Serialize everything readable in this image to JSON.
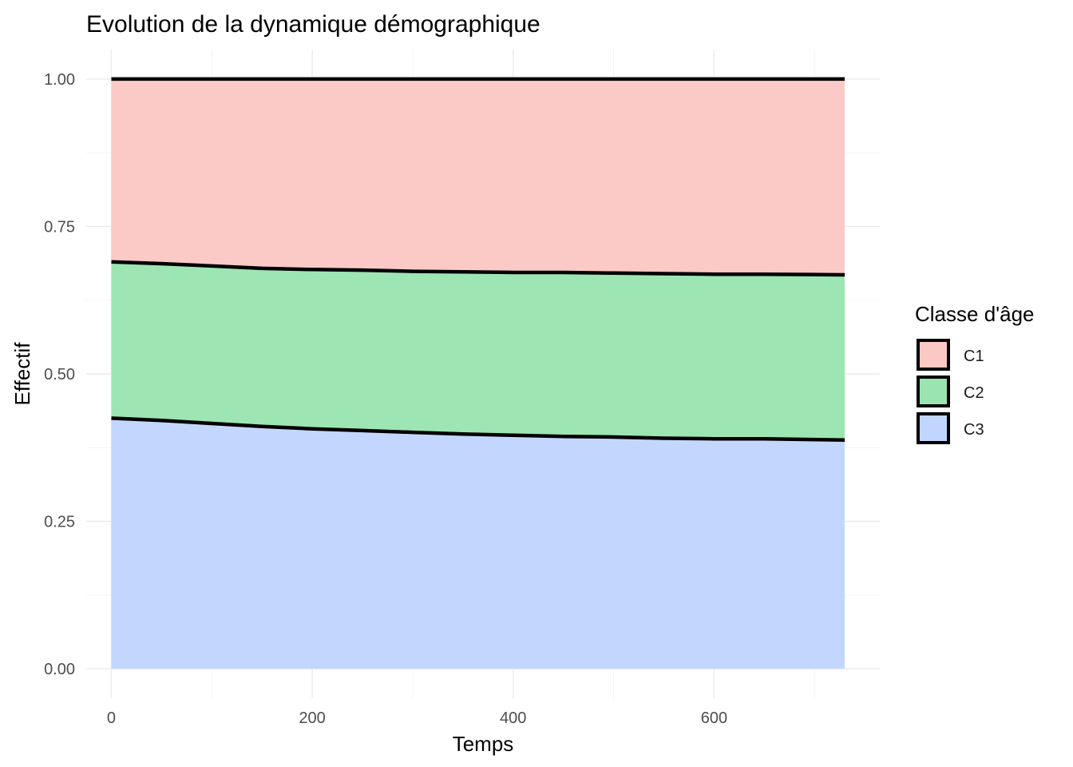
{
  "chart_data": {
    "type": "area",
    "stacked": true,
    "title": "Evolution de la dynamique démographique",
    "xlabel": "Temps",
    "ylabel": "Effectif",
    "xlim": [
      -25,
      765
    ],
    "ylim": [
      -0.05,
      1.05
    ],
    "x_ticks": [
      0,
      200,
      400,
      600
    ],
    "x_tick_labels": [
      "0",
      "200",
      "400",
      "600"
    ],
    "y_ticks": [
      0,
      0.25,
      0.5,
      0.75,
      1.0
    ],
    "y_tick_labels": [
      "0.00",
      "0.25",
      "0.50",
      "0.75",
      "1.00"
    ],
    "grid": true,
    "legend": {
      "title": "Classe d'âge",
      "position": "right",
      "entries": [
        "C1",
        "C2",
        "C3"
      ]
    },
    "x": [
      0,
      50,
      100,
      150,
      200,
      250,
      300,
      350,
      400,
      450,
      500,
      550,
      600,
      650,
      730
    ],
    "series": [
      {
        "name": "C3",
        "color": "#c1d6fe",
        "values": [
          0.425,
          0.421,
          0.416,
          0.411,
          0.407,
          0.404,
          0.401,
          0.398,
          0.396,
          0.394,
          0.393,
          0.391,
          0.39,
          0.39,
          0.388
        ]
      },
      {
        "name": "C2",
        "color": "#9ae4b0",
        "values": [
          0.265,
          0.266,
          0.267,
          0.268,
          0.27,
          0.272,
          0.273,
          0.275,
          0.276,
          0.278,
          0.278,
          0.279,
          0.279,
          0.279,
          0.28
        ]
      },
      {
        "name": "C1",
        "color": "#fbc8c4",
        "values": [
          0.31,
          0.313,
          0.317,
          0.321,
          0.323,
          0.324,
          0.326,
          0.327,
          0.328,
          0.328,
          0.329,
          0.33,
          0.331,
          0.331,
          0.332
        ]
      }
    ]
  }
}
